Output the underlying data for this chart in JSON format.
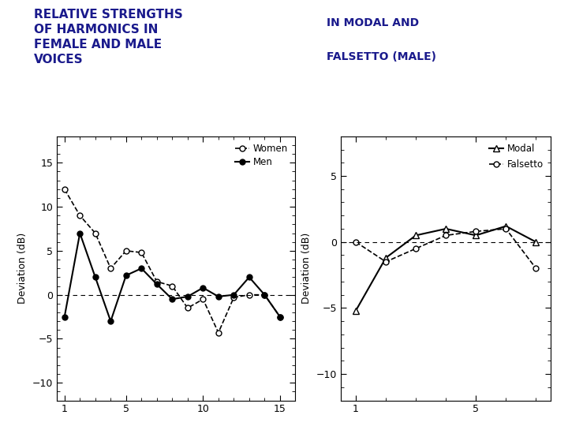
{
  "title_left": "RELATIVE STRENGTHS\nOF HARMONICS IN\nFEMALE AND MALE\nVOICES",
  "title_right1": "IN MODAL AND",
  "title_right2": "FALSETTO (MALE)",
  "title_color": "#1a1a8c",
  "women_x": [
    1,
    2,
    3,
    4,
    5,
    6,
    7,
    8,
    9,
    10,
    11,
    12,
    13,
    14,
    15
  ],
  "women_y": [
    12.0,
    9.0,
    7.0,
    3.0,
    5.0,
    4.8,
    1.5,
    1.0,
    -1.5,
    -0.5,
    -4.3,
    -0.3,
    0.0,
    0.0,
    -2.5
  ],
  "men_x": [
    1,
    2,
    3,
    4,
    5,
    6,
    7,
    8,
    9,
    10,
    11,
    12,
    13,
    14,
    15
  ],
  "men_y": [
    -2.5,
    7.0,
    2.0,
    -3.0,
    2.2,
    3.0,
    1.2,
    -0.5,
    -0.2,
    0.8,
    -0.2,
    0.0,
    2.0,
    0.0,
    -2.5
  ],
  "modal_x": [
    1,
    2,
    3,
    4,
    5,
    6,
    7
  ],
  "modal_y": [
    -5.2,
    -1.2,
    0.5,
    1.0,
    0.5,
    1.2,
    0.0
  ],
  "falsetto_x": [
    1,
    2,
    3,
    4,
    5,
    6,
    7
  ],
  "falsetto_y": [
    0.0,
    -1.5,
    -0.5,
    0.5,
    0.8,
    1.0,
    -2.0
  ],
  "left_ylim": [
    -12,
    18
  ],
  "left_yticks": [
    -10,
    -5,
    0,
    5,
    10,
    15
  ],
  "left_xlim": [
    0.5,
    16
  ],
  "left_xticks": [
    1,
    5,
    10,
    15
  ],
  "right_ylim": [
    -12,
    8
  ],
  "right_yticks": [
    -10,
    -5,
    0,
    5
  ],
  "right_xlim": [
    0.5,
    7.5
  ],
  "right_xticks": [
    1,
    5
  ]
}
